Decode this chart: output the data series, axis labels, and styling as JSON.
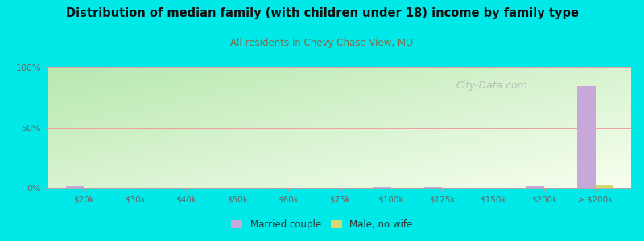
{
  "title": "Distribution of median family (with children under 18) income by family type",
  "subtitle": "All residents in Chevy Chase View, MD",
  "categories": [
    "$20k",
    "$30k",
    "$40k",
    "$50k",
    "$60k",
    "$75k",
    "$100k",
    "$125k",
    "$150k",
    "$200k",
    "> $200k"
  ],
  "married_couple": [
    2.0,
    0,
    0,
    0,
    0,
    0,
    1.0,
    0.7,
    0,
    2.0,
    85.0
  ],
  "male_no_wife": [
    0,
    0,
    0,
    0,
    0,
    0,
    0,
    0,
    0,
    0,
    3.0
  ],
  "bar_width": 0.35,
  "married_color": "#c8a8d8",
  "male_color": "#d4d870",
  "title_color": "#111111",
  "subtitle_color": "#886644",
  "axis_color": "#666666",
  "grid_color": "#f0a0a0",
  "watermark": "City-Data.com",
  "outer_bg": "#00e8e8",
  "ylim": [
    0,
    100
  ],
  "yticks": [
    0,
    50,
    100
  ],
  "ytick_labels": [
    "0%",
    "50%",
    "100%"
  ],
  "bg_topleft": "#b8e8b0",
  "bg_topright": "#e8f8e0",
  "bg_bottomleft": "#e8f8e0",
  "bg_bottomright": "#f8fff8"
}
